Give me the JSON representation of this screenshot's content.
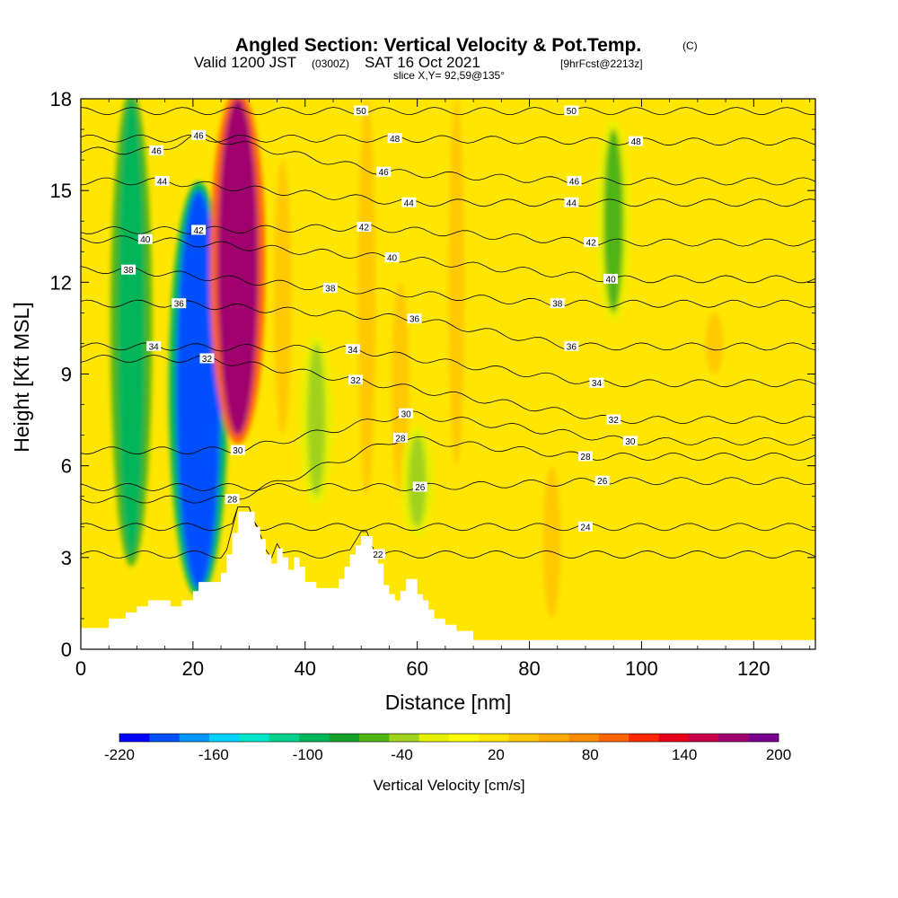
{
  "header": {
    "title": "Angled Section: Vertical Velocity & Pot.Temp.",
    "title_mark": "(C)",
    "valid_prefix": "Valid 1200 JST",
    "valid_z": "(0300Z)",
    "valid_date": "SAT 16 Oct 2021",
    "fcst": "[9hrFcst@2213z]",
    "slice": "slice X,Y= 92,59@135°"
  },
  "chart_data": {
    "type": "heatmap",
    "title": "Angled Section: Vertical Velocity & Pot.Temp.",
    "xlabel": "Distance [nm]",
    "ylabel": "Height [Kft MSL]",
    "xlim": [
      0,
      131
    ],
    "ylim": [
      0,
      18
    ],
    "x_ticks": [
      "0",
      "20",
      "40",
      "60",
      "80",
      "100",
      "120"
    ],
    "y_ticks": [
      "0",
      "3",
      "6",
      "9",
      "12",
      "15",
      "18"
    ],
    "colorbar": {
      "label": "Vertical Velocity [cm/s]",
      "tick_labels": [
        "-220",
        "-160",
        "-100",
        "-40",
        "20",
        "80",
        "140",
        "200"
      ],
      "levels": [
        -220,
        200
      ],
      "colors": [
        "#0000ff",
        "#0050ff",
        "#0096ff",
        "#00d2ff",
        "#00e6c8",
        "#00d28c",
        "#00b45a",
        "#14a028",
        "#50b414",
        "#a0d21e",
        "#e6f000",
        "#ffff00",
        "#ffe600",
        "#ffc800",
        "#ffaa00",
        "#ff8c00",
        "#ff6400",
        "#ff2800",
        "#e6001e",
        "#c80046",
        "#a0006e",
        "#78008c"
      ]
    },
    "velocity_features": [
      {
        "x": 9,
        "z_bottom": 3,
        "z_top": 18,
        "value": -90
      },
      {
        "x": 21,
        "z_bottom": 2,
        "z_top": 15,
        "value": -190
      },
      {
        "x": 28,
        "z_bottom": 7,
        "z_top": 18,
        "value": 170
      },
      {
        "x": 36,
        "z_bottom": 7,
        "z_top": 16,
        "value": 40
      },
      {
        "x": 42,
        "z_bottom": 5,
        "z_top": 10,
        "value": -40
      },
      {
        "x": 51,
        "z_bottom": 5,
        "z_top": 18,
        "value": 40
      },
      {
        "x": 57,
        "z_bottom": 5,
        "z_top": 12,
        "value": 40
      },
      {
        "x": 60,
        "z_bottom": 4,
        "z_top": 7,
        "value": -40
      },
      {
        "x": 67,
        "z_bottom": 6,
        "z_top": 18,
        "value": 30
      },
      {
        "x": 84,
        "z_bottom": 1,
        "z_top": 6,
        "value": 40
      },
      {
        "x": 95,
        "z_bottom": 11,
        "z_top": 17,
        "value": -50
      },
      {
        "x": 113,
        "z_bottom": 9,
        "z_top": 11,
        "value": 40
      }
    ],
    "theta_contours": [
      {
        "label": "22",
        "labels_at": [
          [
            53,
            3.1
          ]
        ]
      },
      {
        "label": "24",
        "labels_at": [
          [
            90,
            4.0
          ]
        ]
      },
      {
        "label": "26",
        "labels_at": [
          [
            60.5,
            5.3
          ],
          [
            93,
            5.5
          ]
        ]
      },
      {
        "label": "28",
        "labels_at": [
          [
            27,
            4.9
          ],
          [
            57,
            6.9
          ],
          [
            90,
            6.3
          ]
        ]
      },
      {
        "label": "30",
        "labels_at": [
          [
            28,
            6.5
          ],
          [
            58,
            7.7
          ],
          [
            98,
            6.8
          ]
        ]
      },
      {
        "label": "32",
        "labels_at": [
          [
            22.5,
            9.5
          ],
          [
            49,
            8.8
          ],
          [
            95,
            7.5
          ]
        ]
      },
      {
        "label": "34",
        "labels_at": [
          [
            13,
            9.9
          ],
          [
            48.5,
            9.8
          ],
          [
            92,
            8.7
          ]
        ]
      },
      {
        "label": "36",
        "labels_at": [
          [
            17.5,
            11.3
          ],
          [
            59.5,
            10.8
          ],
          [
            87.5,
            9.9
          ]
        ]
      },
      {
        "label": "38",
        "labels_at": [
          [
            8.5,
            12.4
          ],
          [
            44.5,
            11.8
          ],
          [
            85,
            11.3
          ]
        ]
      },
      {
        "label": "40",
        "labels_at": [
          [
            11.5,
            13.4
          ],
          [
            55.5,
            12.8
          ],
          [
            94.5,
            12.1
          ]
        ]
      },
      {
        "label": "42",
        "labels_at": [
          [
            21,
            13.7
          ],
          [
            50.5,
            13.8
          ],
          [
            91,
            13.3
          ]
        ]
      },
      {
        "label": "44",
        "labels_at": [
          [
            14.5,
            15.3
          ],
          [
            58.5,
            14.6
          ],
          [
            87.5,
            14.6
          ]
        ]
      },
      {
        "label": "46",
        "labels_at": [
          [
            13.5,
            16.3
          ],
          [
            21,
            16.8
          ],
          [
            54,
            15.6
          ],
          [
            88,
            15.3
          ]
        ]
      },
      {
        "label": "48",
        "labels_at": [
          [
            56,
            16.7
          ],
          [
            99,
            16.6
          ]
        ]
      },
      {
        "label": "50",
        "labels_at": [
          [
            50,
            17.6
          ],
          [
            87.5,
            17.6
          ]
        ]
      }
    ],
    "terrain": [
      [
        0,
        0.7
      ],
      [
        5,
        0.7
      ],
      [
        5,
        1.0
      ],
      [
        8,
        1.0
      ],
      [
        8,
        1.2
      ],
      [
        10,
        1.2
      ],
      [
        10,
        1.4
      ],
      [
        12,
        1.4
      ],
      [
        12,
        1.6
      ],
      [
        16,
        1.6
      ],
      [
        16,
        1.4
      ],
      [
        18,
        1.4
      ],
      [
        18,
        1.6
      ],
      [
        20,
        1.6
      ],
      [
        20,
        1.9
      ],
      [
        21,
        1.9
      ],
      [
        21,
        2.2
      ],
      [
        25,
        2.2
      ],
      [
        25,
        2.5
      ],
      [
        26,
        2.5
      ],
      [
        26,
        3.1
      ],
      [
        27,
        3.1
      ],
      [
        27,
        3.8
      ],
      [
        28,
        3.8
      ],
      [
        28,
        4.5
      ],
      [
        31,
        4.5
      ],
      [
        31,
        4.0
      ],
      [
        32,
        4.0
      ],
      [
        32,
        3.6
      ],
      [
        33,
        3.6
      ],
      [
        33,
        3.1
      ],
      [
        34,
        3.1
      ],
      [
        34,
        2.8
      ],
      [
        35,
        2.8
      ],
      [
        35,
        3.3
      ],
      [
        36,
        3.3
      ],
      [
        36,
        3.0
      ],
      [
        37,
        3.0
      ],
      [
        37,
        2.6
      ],
      [
        38,
        2.6
      ],
      [
        38,
        3.0
      ],
      [
        39,
        3.0
      ],
      [
        39,
        2.7
      ],
      [
        40,
        2.7
      ],
      [
        40,
        2.2
      ],
      [
        42,
        2.2
      ],
      [
        42,
        2.0
      ],
      [
        46,
        2.0
      ],
      [
        46,
        2.3
      ],
      [
        47,
        2.3
      ],
      [
        47,
        2.7
      ],
      [
        48,
        2.7
      ],
      [
        48,
        3.1
      ],
      [
        49,
        3.1
      ],
      [
        49,
        3.4
      ],
      [
        50,
        3.4
      ],
      [
        50,
        3.7
      ],
      [
        52,
        3.7
      ],
      [
        52,
        3.2
      ],
      [
        53,
        3.2
      ],
      [
        53,
        2.8
      ],
      [
        54,
        2.8
      ],
      [
        54,
        2.1
      ],
      [
        55,
        2.1
      ],
      [
        55,
        1.8
      ],
      [
        56,
        1.8
      ],
      [
        56,
        1.6
      ],
      [
        57,
        1.6
      ],
      [
        57,
        1.9
      ],
      [
        58,
        1.9
      ],
      [
        58,
        2.3
      ],
      [
        60,
        2.3
      ],
      [
        60,
        1.8
      ],
      [
        61,
        1.8
      ],
      [
        61,
        1.6
      ],
      [
        62,
        1.6
      ],
      [
        62,
        1.3
      ],
      [
        63,
        1.3
      ],
      [
        63,
        1.0
      ],
      [
        65,
        1.0
      ],
      [
        65,
        0.8
      ],
      [
        67,
        0.8
      ],
      [
        67,
        0.6
      ],
      [
        70,
        0.6
      ],
      [
        70,
        0.3
      ],
      [
        131,
        0.3
      ]
    ]
  }
}
